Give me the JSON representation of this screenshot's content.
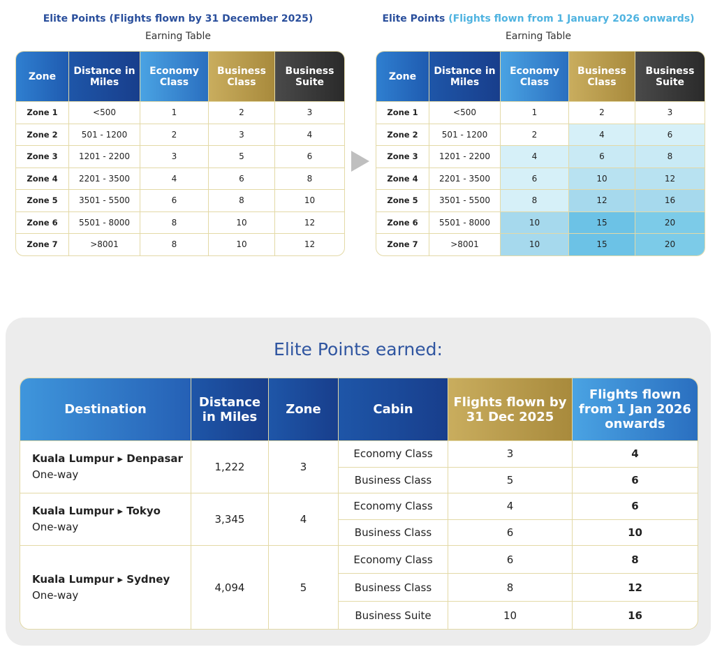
{
  "left": {
    "title": "Elite Points (Flights flown by 31 December 2025)",
    "subtitle": "Earning Table",
    "headers": [
      "Zone",
      "Distance in Miles",
      "Economy Class",
      "Business Class",
      "Business Suite"
    ],
    "rows": [
      [
        "Zone 1",
        "<500",
        "1",
        "2",
        "3"
      ],
      [
        "Zone 2",
        "501 - 1200",
        "2",
        "3",
        "4"
      ],
      [
        "Zone 3",
        "1201 - 2200",
        "3",
        "5",
        "6"
      ],
      [
        "Zone 4",
        "2201 - 3500",
        "4",
        "6",
        "8"
      ],
      [
        "Zone 5",
        "3501 - 5500",
        "6",
        "8",
        "10"
      ],
      [
        "Zone 6",
        "5501 - 8000",
        "8",
        "10",
        "12"
      ],
      [
        "Zone 7",
        ">8001",
        "8",
        "10",
        "12"
      ]
    ]
  },
  "right": {
    "title_a": "Elite Points",
    "title_b": "(Flights flown from 1 January 2026 onwards)",
    "subtitle": "Earning Table",
    "headers": [
      "Zone",
      "Distance in Miles",
      "Economy Class",
      "Business Class",
      "Business Suite"
    ],
    "rows": [
      [
        "Zone 1",
        "<500",
        "1",
        "2",
        "3"
      ],
      [
        "Zone 2",
        "501 - 1200",
        "2",
        "4",
        "6"
      ],
      [
        "Zone 3",
        "1201 - 2200",
        "4",
        "6",
        "8"
      ],
      [
        "Zone 4",
        "2201 - 3500",
        "6",
        "10",
        "12"
      ],
      [
        "Zone 5",
        "3501 - 5500",
        "8",
        "12",
        "16"
      ],
      [
        "Zone 6",
        "5501 - 8000",
        "10",
        "15",
        "20"
      ],
      [
        "Zone 7",
        ">8001",
        "10",
        "15",
        "20"
      ]
    ],
    "shades": [
      [
        "#ffffff",
        "#ffffff",
        "#ffffff"
      ],
      [
        "#ffffff",
        "#d6f0f8",
        "#d6f0f8"
      ],
      [
        "#d6f0f8",
        "#c9eaf5",
        "#c9eaf5"
      ],
      [
        "#d6f0f8",
        "#b8e2f1",
        "#b8e2f1"
      ],
      [
        "#d6f0f8",
        "#a6d9ed",
        "#a6d9ed"
      ],
      [
        "#a6d9ed",
        "#6cc2e6",
        "#7ccbe8"
      ],
      [
        "#a6d9ed",
        "#6cc2e6",
        "#7ccbe8"
      ]
    ]
  },
  "earned": {
    "title": "Elite Points earned:",
    "headers": [
      "Destination",
      "Distance in Miles",
      "Zone",
      "Cabin",
      "Flights flown by 31 Dec 2025",
      "Flights flown from 1 Jan 2026 onwards"
    ],
    "routes": [
      {
        "route": "Kuala Lumpur ▸ Denpasar",
        "type": "One-way",
        "miles": "1,222",
        "zone": "3",
        "cabins": [
          [
            "Economy Class",
            "3",
            "4"
          ],
          [
            "Business Class",
            "5",
            "6"
          ]
        ]
      },
      {
        "route": "Kuala Lumpur ▸ Tokyo",
        "type": "One-way",
        "miles": "3,345",
        "zone": "4",
        "cabins": [
          [
            "Economy Class",
            "4",
            "6"
          ],
          [
            "Business Class",
            "6",
            "10"
          ]
        ]
      },
      {
        "route": "Kuala Lumpur ▸ Sydney",
        "type": "One-way",
        "miles": "4,094",
        "zone": "5",
        "cabins": [
          [
            "Economy Class",
            "6",
            "8"
          ],
          [
            "Business Class",
            "8",
            "12"
          ],
          [
            "Business Suite",
            "10",
            "16"
          ]
        ]
      }
    ]
  }
}
